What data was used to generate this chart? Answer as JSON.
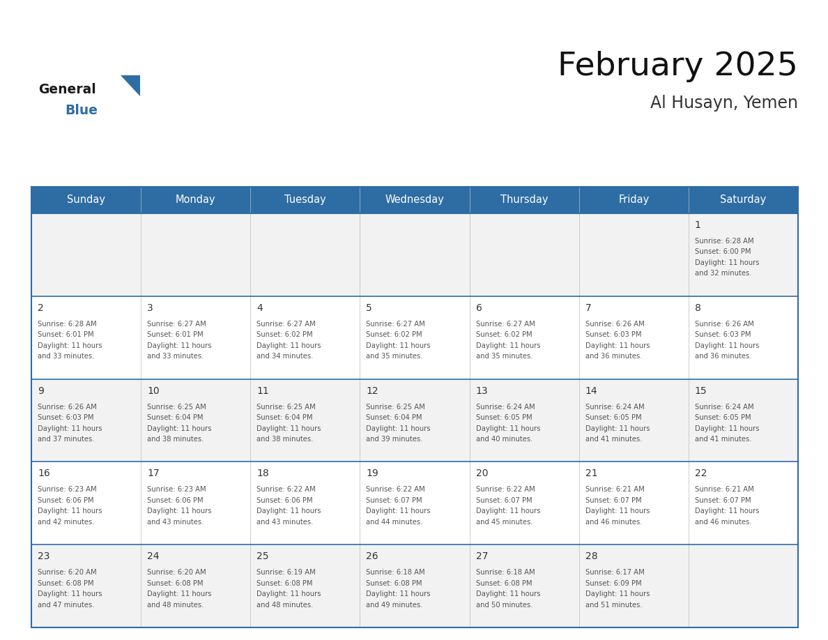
{
  "title": "February 2025",
  "subtitle": "Al Husayn, Yemen",
  "header_bg_color": "#2E6DA4",
  "header_text_color": "#FFFFFF",
  "days_of_week": [
    "Sunday",
    "Monday",
    "Tuesday",
    "Wednesday",
    "Thursday",
    "Friday",
    "Saturday"
  ],
  "bg_color": "#FFFFFF",
  "row_colors": [
    "#F2F2F2",
    "#FFFFFF"
  ],
  "grid_line_color": "#2E6DA4",
  "day_number_color": "#333333",
  "text_color": "#555555",
  "calendar_data": [
    {
      "day": 1,
      "col": 6,
      "row": 0,
      "sunrise": "6:28 AM",
      "sunset": "6:00 PM",
      "daylight_hours": 11,
      "daylight_minutes": 32
    },
    {
      "day": 2,
      "col": 0,
      "row": 1,
      "sunrise": "6:28 AM",
      "sunset": "6:01 PM",
      "daylight_hours": 11,
      "daylight_minutes": 33
    },
    {
      "day": 3,
      "col": 1,
      "row": 1,
      "sunrise": "6:27 AM",
      "sunset": "6:01 PM",
      "daylight_hours": 11,
      "daylight_minutes": 33
    },
    {
      "day": 4,
      "col": 2,
      "row": 1,
      "sunrise": "6:27 AM",
      "sunset": "6:02 PM",
      "daylight_hours": 11,
      "daylight_minutes": 34
    },
    {
      "day": 5,
      "col": 3,
      "row": 1,
      "sunrise": "6:27 AM",
      "sunset": "6:02 PM",
      "daylight_hours": 11,
      "daylight_minutes": 35
    },
    {
      "day": 6,
      "col": 4,
      "row": 1,
      "sunrise": "6:27 AM",
      "sunset": "6:02 PM",
      "daylight_hours": 11,
      "daylight_minutes": 35
    },
    {
      "day": 7,
      "col": 5,
      "row": 1,
      "sunrise": "6:26 AM",
      "sunset": "6:03 PM",
      "daylight_hours": 11,
      "daylight_minutes": 36
    },
    {
      "day": 8,
      "col": 6,
      "row": 1,
      "sunrise": "6:26 AM",
      "sunset": "6:03 PM",
      "daylight_hours": 11,
      "daylight_minutes": 36
    },
    {
      "day": 9,
      "col": 0,
      "row": 2,
      "sunrise": "6:26 AM",
      "sunset": "6:03 PM",
      "daylight_hours": 11,
      "daylight_minutes": 37
    },
    {
      "day": 10,
      "col": 1,
      "row": 2,
      "sunrise": "6:25 AM",
      "sunset": "6:04 PM",
      "daylight_hours": 11,
      "daylight_minutes": 38
    },
    {
      "day": 11,
      "col": 2,
      "row": 2,
      "sunrise": "6:25 AM",
      "sunset": "6:04 PM",
      "daylight_hours": 11,
      "daylight_minutes": 38
    },
    {
      "day": 12,
      "col": 3,
      "row": 2,
      "sunrise": "6:25 AM",
      "sunset": "6:04 PM",
      "daylight_hours": 11,
      "daylight_minutes": 39
    },
    {
      "day": 13,
      "col": 4,
      "row": 2,
      "sunrise": "6:24 AM",
      "sunset": "6:05 PM",
      "daylight_hours": 11,
      "daylight_minutes": 40
    },
    {
      "day": 14,
      "col": 5,
      "row": 2,
      "sunrise": "6:24 AM",
      "sunset": "6:05 PM",
      "daylight_hours": 11,
      "daylight_minutes": 41
    },
    {
      "day": 15,
      "col": 6,
      "row": 2,
      "sunrise": "6:24 AM",
      "sunset": "6:05 PM",
      "daylight_hours": 11,
      "daylight_minutes": 41
    },
    {
      "day": 16,
      "col": 0,
      "row": 3,
      "sunrise": "6:23 AM",
      "sunset": "6:06 PM",
      "daylight_hours": 11,
      "daylight_minutes": 42
    },
    {
      "day": 17,
      "col": 1,
      "row": 3,
      "sunrise": "6:23 AM",
      "sunset": "6:06 PM",
      "daylight_hours": 11,
      "daylight_minutes": 43
    },
    {
      "day": 18,
      "col": 2,
      "row": 3,
      "sunrise": "6:22 AM",
      "sunset": "6:06 PM",
      "daylight_hours": 11,
      "daylight_minutes": 43
    },
    {
      "day": 19,
      "col": 3,
      "row": 3,
      "sunrise": "6:22 AM",
      "sunset": "6:07 PM",
      "daylight_hours": 11,
      "daylight_minutes": 44
    },
    {
      "day": 20,
      "col": 4,
      "row": 3,
      "sunrise": "6:22 AM",
      "sunset": "6:07 PM",
      "daylight_hours": 11,
      "daylight_minutes": 45
    },
    {
      "day": 21,
      "col": 5,
      "row": 3,
      "sunrise": "6:21 AM",
      "sunset": "6:07 PM",
      "daylight_hours": 11,
      "daylight_minutes": 46
    },
    {
      "day": 22,
      "col": 6,
      "row": 3,
      "sunrise": "6:21 AM",
      "sunset": "6:07 PM",
      "daylight_hours": 11,
      "daylight_minutes": 46
    },
    {
      "day": 23,
      "col": 0,
      "row": 4,
      "sunrise": "6:20 AM",
      "sunset": "6:08 PM",
      "daylight_hours": 11,
      "daylight_minutes": 47
    },
    {
      "day": 24,
      "col": 1,
      "row": 4,
      "sunrise": "6:20 AM",
      "sunset": "6:08 PM",
      "daylight_hours": 11,
      "daylight_minutes": 48
    },
    {
      "day": 25,
      "col": 2,
      "row": 4,
      "sunrise": "6:19 AM",
      "sunset": "6:08 PM",
      "daylight_hours": 11,
      "daylight_minutes": 48
    },
    {
      "day": 26,
      "col": 3,
      "row": 4,
      "sunrise": "6:18 AM",
      "sunset": "6:08 PM",
      "daylight_hours": 11,
      "daylight_minutes": 49
    },
    {
      "day": 27,
      "col": 4,
      "row": 4,
      "sunrise": "6:18 AM",
      "sunset": "6:08 PM",
      "daylight_hours": 11,
      "daylight_minutes": 50
    },
    {
      "day": 28,
      "col": 5,
      "row": 4,
      "sunrise": "6:17 AM",
      "sunset": "6:09 PM",
      "daylight_hours": 11,
      "daylight_minutes": 51
    }
  ]
}
